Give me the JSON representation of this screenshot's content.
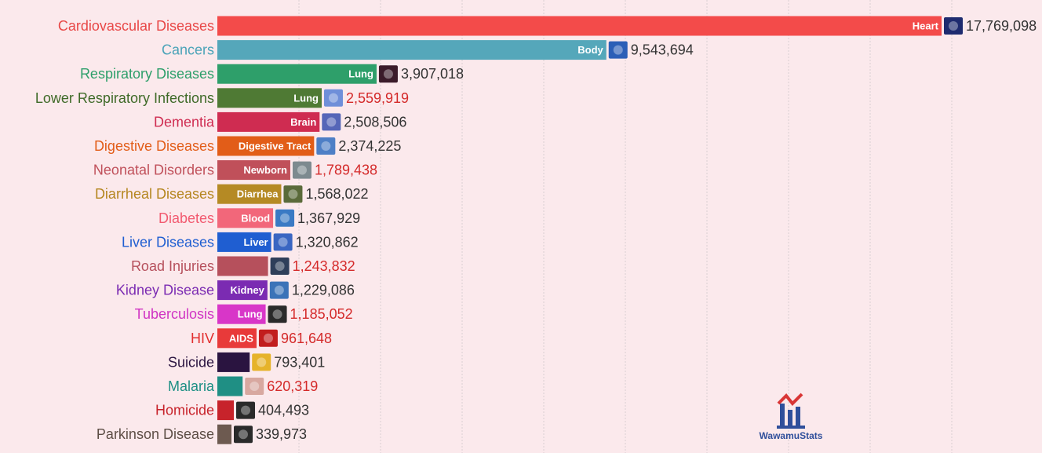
{
  "chart_data": {
    "type": "bar",
    "orientation": "horizontal",
    "max_value": 17769098,
    "categories": [
      {
        "name": "Cardiovascular Diseases",
        "value": 17769098,
        "value_text": "17,769,098",
        "bar_label": "Heart",
        "color": "#f34b4a",
        "label_color": "#e84746",
        "value_color": "#333333",
        "icon": "heart-icon",
        "icon_color": "#1e2b6f"
      },
      {
        "name": "Cancers",
        "value": 9543694,
        "value_text": "9,543,694",
        "bar_label": "Body",
        "color": "#55a7ba",
        "label_color": "#4aa3b8",
        "value_color": "#333333",
        "icon": "body-icon",
        "icon_color": "#2b5fb7"
      },
      {
        "name": "Respiratory Diseases",
        "value": 3907018,
        "value_text": "3,907,018",
        "bar_label": "Lung",
        "color": "#2e9f6a",
        "label_color": "#2e9f6a",
        "value_color": "#333333",
        "icon": "lung-icon",
        "icon_color": "#3b1b2a"
      },
      {
        "name": "Lower Respiratory Infections",
        "value": 2559919,
        "value_text": "2,559,919",
        "bar_label": "Lung",
        "color": "#4f7a34",
        "label_color": "#3f6a28",
        "value_color": "#d42a2a",
        "icon": "lung-icon",
        "icon_color": "#6f8fd9"
      },
      {
        "name": "Dementia",
        "value": 2508506,
        "value_text": "2,508,506",
        "bar_label": "Brain",
        "color": "#cf2c51",
        "label_color": "#cf2c51",
        "value_color": "#333333",
        "icon": "brain-icon",
        "icon_color": "#5566b8"
      },
      {
        "name": "Digestive Diseases",
        "value": 2374225,
        "value_text": "2,374,225",
        "bar_label": "Digestive Tract",
        "color": "#e25d18",
        "label_color": "#e25d18",
        "value_color": "#333333",
        "icon": "digestive-icon",
        "icon_color": "#4e7fc6"
      },
      {
        "name": "Neonatal Disorders",
        "value": 1789438,
        "value_text": "1,789,438",
        "bar_label": "Newborn",
        "color": "#c0505a",
        "label_color": "#c0505a",
        "value_color": "#d42a2a",
        "icon": "newborn-icon",
        "icon_color": "#7d8a8f"
      },
      {
        "name": "Diarrheal Diseases",
        "value": 1568022,
        "value_text": "1,568,022",
        "bar_label": "Diarrhea",
        "color": "#b58a24",
        "label_color": "#b5861f",
        "value_color": "#333333",
        "icon": "diarrhea-icon",
        "icon_color": "#5a6a3a"
      },
      {
        "name": "Diabetes",
        "value": 1367929,
        "value_text": "1,367,929",
        "bar_label": "Blood",
        "color": "#f2677a",
        "label_color": "#f25a70",
        "value_color": "#333333",
        "icon": "blood-icon",
        "icon_color": "#3a7ac4"
      },
      {
        "name": "Liver Diseases",
        "value": 1320862,
        "value_text": "1,320,862",
        "bar_label": "Liver",
        "color": "#1f5ed1",
        "label_color": "#1f5ed1",
        "value_color": "#333333",
        "icon": "liver-icon",
        "icon_color": "#3a66c2"
      },
      {
        "name": "Road Injuries",
        "value": 1243832,
        "value_text": "1,243,832",
        "bar_label": "",
        "color": "#b6505c",
        "label_color": "#b6505c",
        "value_color": "#d42a2a",
        "icon": "car-icon",
        "icon_color": "#2f3f5a"
      },
      {
        "name": "Kidney Disease",
        "value": 1229086,
        "value_text": "1,229,086",
        "bar_label": "Kidney",
        "color": "#7b2bb2",
        "label_color": "#7b2bb2",
        "value_color": "#333333",
        "icon": "kidney-icon",
        "icon_color": "#3b73b8"
      },
      {
        "name": "Tuberculosis",
        "value": 1185052,
        "value_text": "1,185,052",
        "bar_label": "Lung",
        "color": "#d836c8",
        "label_color": "#d034c3",
        "value_color": "#d42a2a",
        "icon": "xray-icon",
        "icon_color": "#2a2a2a"
      },
      {
        "name": "HIV",
        "value": 961648,
        "value_text": "961,648",
        "bar_label": "AIDS",
        "color": "#e83a3a",
        "label_color": "#e22f2f",
        "value_color": "#d42a2a",
        "icon": "ribbon-icon",
        "icon_color": "#c21e1e"
      },
      {
        "name": "Suicide",
        "value": 793401,
        "value_text": "793,401",
        "bar_label": "",
        "color": "#2a1440",
        "label_color": "#2a1440",
        "value_color": "#333333",
        "icon": "ribbon-icon",
        "icon_color": "#e6b32a"
      },
      {
        "name": "Malaria",
        "value": 620319,
        "value_text": "620,319",
        "bar_label": "",
        "color": "#1f8f84",
        "label_color": "#1c8f84",
        "value_color": "#d42a2a",
        "icon": "mosquito-icon",
        "icon_color": "#d8a8a0"
      },
      {
        "name": "Homicide",
        "value": 404493,
        "value_text": "404,493",
        "bar_label": "",
        "color": "#c7232b",
        "label_color": "#c7232b",
        "value_color": "#333333",
        "icon": "crime-icon",
        "icon_color": "#2a2a2a"
      },
      {
        "name": "Parkinson Disease",
        "value": 339973,
        "value_text": "339,973",
        "bar_label": "",
        "color": "#6d5a50",
        "label_color": "#5d4e46",
        "value_color": "#333333",
        "icon": "neuron-icon",
        "icon_color": "#2a2a2a"
      }
    ],
    "grid": true
  },
  "watermark": {
    "text": "WawamuStats",
    "icon": "bar-chart-logo-icon"
  }
}
